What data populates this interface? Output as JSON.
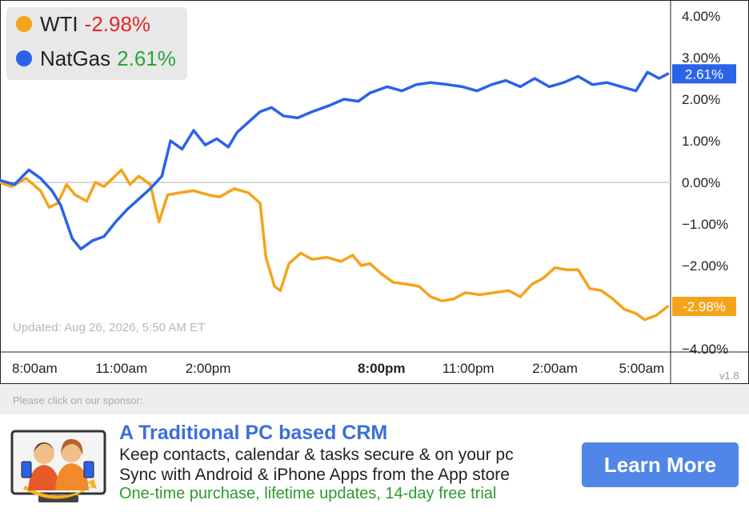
{
  "legend": {
    "wti": {
      "name": "WTI",
      "value": "-2.98%",
      "color": "#f5a31a",
      "value_color": "#e0282a"
    },
    "natgas": {
      "name": "NatGas",
      "value": "2.61%",
      "color": "#2a63e8",
      "value_color": "#2ea33a"
    }
  },
  "updated_text": "Updated: Aug 26, 2026, 5:50 AM ET",
  "version": "v1.8",
  "chart_data": {
    "type": "line",
    "y_ticks": [
      "4.00%",
      "3.00%",
      "2.00%",
      "1.00%",
      "0.00%",
      "−1.00%",
      "−2.00%",
      "−4.00%"
    ],
    "y_tick_values": [
      4,
      3,
      2,
      1,
      0,
      -1,
      -2,
      -4
    ],
    "ylim": [
      -4,
      4.2
    ],
    "x_ticks": [
      {
        "label": "8:00am",
        "bold": false
      },
      {
        "label": "11:00am",
        "bold": false
      },
      {
        "label": "2:00pm",
        "bold": false
      },
      {
        "label": "8:00pm",
        "bold": true
      },
      {
        "label": "11:00pm",
        "bold": false
      },
      {
        "label": "2:00am",
        "bold": false
      },
      {
        "label": "5:00am",
        "bold": false
      }
    ],
    "x_tick_values": [
      8,
      11,
      14,
      20,
      23,
      26,
      29
    ],
    "xlim": [
      6.8,
      30.0
    ],
    "end_labels": [
      {
        "text": "2.61%",
        "value": 2.61,
        "color": "#2a63e8"
      },
      {
        "text": "-2.98%",
        "value": -2.98,
        "color": "#f5a31a"
      }
    ],
    "series": [
      {
        "name": "WTI",
        "color": "#f5a31a",
        "points": [
          [
            6.8,
            0.0
          ],
          [
            7.2,
            -0.1
          ],
          [
            7.7,
            0.1
          ],
          [
            8.2,
            -0.2
          ],
          [
            8.5,
            -0.6
          ],
          [
            8.8,
            -0.5
          ],
          [
            9.1,
            -0.05
          ],
          [
            9.4,
            -0.3
          ],
          [
            9.8,
            -0.45
          ],
          [
            10.1,
            0.0
          ],
          [
            10.4,
            -0.1
          ],
          [
            10.7,
            0.1
          ],
          [
            11.0,
            0.3
          ],
          [
            11.3,
            -0.05
          ],
          [
            11.6,
            0.15
          ],
          [
            12.0,
            -0.05
          ],
          [
            12.3,
            -0.95
          ],
          [
            12.6,
            -0.3
          ],
          [
            13.0,
            -0.25
          ],
          [
            13.5,
            -0.2
          ],
          [
            14.0,
            -0.3
          ],
          [
            14.4,
            -0.35
          ],
          [
            14.9,
            -0.15
          ],
          [
            15.4,
            -0.25
          ],
          [
            15.8,
            -0.5
          ],
          [
            16.0,
            -1.8
          ],
          [
            16.3,
            -2.5
          ],
          [
            16.5,
            -2.6
          ],
          [
            16.8,
            -1.95
          ],
          [
            17.2,
            -1.7
          ],
          [
            17.6,
            -1.85
          ],
          [
            18.1,
            -1.8
          ],
          [
            18.6,
            -1.9
          ],
          [
            19.0,
            -1.75
          ],
          [
            19.3,
            -2.0
          ],
          [
            19.6,
            -1.95
          ],
          [
            20.0,
            -2.2
          ],
          [
            20.4,
            -2.4
          ],
          [
            20.9,
            -2.45
          ],
          [
            21.3,
            -2.5
          ],
          [
            21.7,
            -2.75
          ],
          [
            22.1,
            -2.85
          ],
          [
            22.5,
            -2.8
          ],
          [
            22.9,
            -2.65
          ],
          [
            23.4,
            -2.7
          ],
          [
            23.9,
            -2.65
          ],
          [
            24.4,
            -2.6
          ],
          [
            24.8,
            -2.75
          ],
          [
            25.2,
            -2.45
          ],
          [
            25.6,
            -2.3
          ],
          [
            26.0,
            -2.05
          ],
          [
            26.4,
            -2.1
          ],
          [
            26.8,
            -2.1
          ],
          [
            27.2,
            -2.55
          ],
          [
            27.6,
            -2.6
          ],
          [
            28.0,
            -2.8
          ],
          [
            28.4,
            -3.05
          ],
          [
            28.8,
            -3.15
          ],
          [
            29.1,
            -3.3
          ],
          [
            29.5,
            -3.2
          ],
          [
            29.9,
            -2.98
          ]
        ]
      },
      {
        "name": "NatGas",
        "color": "#2a63e8",
        "points": [
          [
            6.8,
            0.05
          ],
          [
            7.3,
            -0.05
          ],
          [
            7.8,
            0.3
          ],
          [
            8.2,
            0.1
          ],
          [
            8.6,
            -0.2
          ],
          [
            8.9,
            -0.55
          ],
          [
            9.3,
            -1.35
          ],
          [
            9.6,
            -1.6
          ],
          [
            10.0,
            -1.4
          ],
          [
            10.4,
            -1.3
          ],
          [
            10.8,
            -0.95
          ],
          [
            11.2,
            -0.65
          ],
          [
            11.6,
            -0.4
          ],
          [
            12.0,
            -0.15
          ],
          [
            12.4,
            0.15
          ],
          [
            12.7,
            1.0
          ],
          [
            13.1,
            0.8
          ],
          [
            13.5,
            1.25
          ],
          [
            13.9,
            0.9
          ],
          [
            14.3,
            1.05
          ],
          [
            14.7,
            0.85
          ],
          [
            15.0,
            1.2
          ],
          [
            15.4,
            1.45
          ],
          [
            15.8,
            1.7
          ],
          [
            16.2,
            1.8
          ],
          [
            16.6,
            1.6
          ],
          [
            17.1,
            1.55
          ],
          [
            17.6,
            1.7
          ],
          [
            18.2,
            1.85
          ],
          [
            18.7,
            2.0
          ],
          [
            19.2,
            1.95
          ],
          [
            19.6,
            2.15
          ],
          [
            20.2,
            2.3
          ],
          [
            20.7,
            2.2
          ],
          [
            21.2,
            2.35
          ],
          [
            21.7,
            2.4
          ],
          [
            22.3,
            2.35
          ],
          [
            22.8,
            2.3
          ],
          [
            23.3,
            2.2
          ],
          [
            23.8,
            2.35
          ],
          [
            24.3,
            2.45
          ],
          [
            24.8,
            2.3
          ],
          [
            25.3,
            2.5
          ],
          [
            25.8,
            2.3
          ],
          [
            26.3,
            2.4
          ],
          [
            26.8,
            2.55
          ],
          [
            27.3,
            2.35
          ],
          [
            27.8,
            2.4
          ],
          [
            28.3,
            2.3
          ],
          [
            28.8,
            2.2
          ],
          [
            29.2,
            2.65
          ],
          [
            29.6,
            2.5
          ],
          [
            29.9,
            2.61
          ]
        ]
      }
    ]
  },
  "sponsor": {
    "label": "Please click on our sponsor:",
    "title": "A Traditional PC based CRM",
    "line1": "Keep contacts, calendar & tasks secure & on your pc",
    "line2": "Sync with Android & iPhone Apps from the App store",
    "line3": "One-time purchase, lifetime updates, 14-day free trial",
    "button": "Learn More",
    "image_icon": "crm-people-icon"
  }
}
